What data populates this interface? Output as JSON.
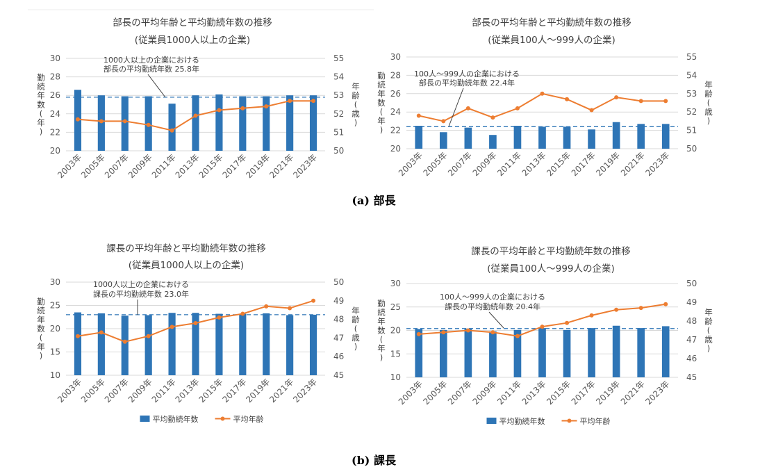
{
  "colors": {
    "bar": "#2E75B6",
    "line": "#ED7D31",
    "ref": "#2E75B6",
    "grid": "#D9D9D9",
    "text": "#404040",
    "tick": "#595959"
  },
  "captions": {
    "a": "(a) 部長",
    "b": "(b) 課長"
  },
  "legend": {
    "bar_label": "平均勤続年数",
    "line_label": "平均年齢"
  },
  "chart_data": [
    {
      "type": "bar+line",
      "title": "部長の平均年齢と平均勤続年数の推移",
      "subtitle": "(従業員1000人以上の企業)",
      "categories": [
        "2003年",
        "2005年",
        "2007年",
        "2009年",
        "2011年",
        "2013年",
        "2015年",
        "2017年",
        "2019年",
        "2021年",
        "2023年"
      ],
      "series": [
        {
          "name": "平均勤続年数",
          "kind": "bar",
          "axis": "left",
          "values": [
            26.6,
            26.0,
            25.9,
            25.9,
            25.1,
            26.0,
            26.1,
            25.9,
            25.9,
            26.0,
            26.0
          ]
        },
        {
          "name": "平均年齢",
          "kind": "line",
          "axis": "right",
          "values": [
            51.7,
            51.6,
            51.6,
            51.4,
            51.1,
            51.9,
            52.2,
            52.3,
            52.4,
            52.7,
            52.7
          ]
        }
      ],
      "ylabel_left": "勤続年数(年)",
      "ylabel_right": "年齢(歳)",
      "ylim_left": [
        20,
        30
      ],
      "yticks_left": [
        20,
        22,
        24,
        26,
        28,
        30
      ],
      "ylim_right": [
        50,
        55
      ],
      "yticks_right": [
        50,
        51,
        52,
        53,
        54,
        55
      ],
      "reference": {
        "value": 25.8,
        "label_line1": "1000人以上の企業における",
        "label_line2": "部長の平均勤続年数 25.8年"
      },
      "legend": false
    },
    {
      "type": "bar+line",
      "title": "部長の平均年齢と平均勤続年数の推移",
      "subtitle": "(従業員100人～999人の企業)",
      "categories": [
        "2003年",
        "2005年",
        "2007年",
        "2009年",
        "2011年",
        "2013年",
        "2015年",
        "2017年",
        "2019年",
        "2021年",
        "2023年"
      ],
      "series": [
        {
          "name": "平均勤続年数",
          "kind": "bar",
          "axis": "left",
          "values": [
            22.5,
            21.8,
            22.3,
            21.5,
            22.5,
            22.4,
            22.4,
            22.1,
            22.9,
            22.7,
            22.7
          ]
        },
        {
          "name": "平均年齢",
          "kind": "line",
          "axis": "right",
          "values": [
            51.8,
            51.5,
            52.2,
            51.7,
            52.2,
            53.0,
            52.7,
            52.1,
            52.8,
            52.6,
            52.6
          ]
        }
      ],
      "ylabel_left": "勤続年数(年)",
      "ylabel_right": "年齢(歳)",
      "ylim_left": [
        20,
        30
      ],
      "yticks_left": [
        20,
        22,
        24,
        26,
        28,
        30
      ],
      "ylim_right": [
        50,
        55
      ],
      "yticks_right": [
        50,
        51,
        52,
        53,
        54,
        55
      ],
      "reference": {
        "value": 22.4,
        "label_line1": "100人～999人の企業における",
        "label_line2": "部長の平均勤続年数 22.4年"
      },
      "legend": false
    },
    {
      "type": "bar+line",
      "title": "課長の平均年齢と平均勤続年数の推移",
      "subtitle": "(従業員1000人以上の企業)",
      "categories": [
        "2003年",
        "2005年",
        "2007年",
        "2009年",
        "2011年",
        "2013年",
        "2015年",
        "2017年",
        "2019年",
        "2021年",
        "2023年"
      ],
      "series": [
        {
          "name": "平均勤続年数",
          "kind": "bar",
          "axis": "left",
          "values": [
            23.5,
            23.3,
            22.8,
            22.9,
            23.4,
            23.4,
            23.2,
            23.2,
            23.3,
            22.9,
            23.0
          ]
        },
        {
          "name": "平均年齢",
          "kind": "line",
          "axis": "right",
          "values": [
            47.1,
            47.3,
            46.8,
            47.1,
            47.6,
            47.8,
            48.1,
            48.3,
            48.7,
            48.6,
            49.0
          ]
        }
      ],
      "ylabel_left": "勤続年数(年)",
      "ylabel_right": "年齢(歳)",
      "ylim_left": [
        10,
        30
      ],
      "yticks_left": [
        10,
        15,
        20,
        25,
        30
      ],
      "ylim_right": [
        45,
        50
      ],
      "yticks_right": [
        45,
        46,
        47,
        48,
        49,
        50
      ],
      "reference": {
        "value": 23.0,
        "label_line1": "1000人以上の企業における",
        "label_line2": "課長の平均勤続年数 23.0年"
      },
      "legend": true
    },
    {
      "type": "bar+line",
      "title": "課長の平均年齢と平均勤続年数の推移",
      "subtitle": "(従業員100人～999人の企業)",
      "categories": [
        "2003年",
        "2005年",
        "2007年",
        "2009年",
        "2011年",
        "2013年",
        "2015年",
        "2017年",
        "2019年",
        "2021年",
        "2023年"
      ],
      "series": [
        {
          "name": "平均勤続年数",
          "kind": "bar",
          "axis": "left",
          "values": [
            20.3,
            20.1,
            20.4,
            19.8,
            20.1,
            20.5,
            20.1,
            20.5,
            21.0,
            20.5,
            20.9
          ]
        },
        {
          "name": "平均年齢",
          "kind": "line",
          "axis": "right",
          "values": [
            47.3,
            47.4,
            47.5,
            47.4,
            47.2,
            47.7,
            47.9,
            48.3,
            48.6,
            48.7,
            48.9
          ]
        }
      ],
      "ylabel_left": "勤続年数(年)",
      "ylabel_right": "年齢(歳)",
      "ylim_left": [
        10,
        30
      ],
      "yticks_left": [
        10,
        15,
        20,
        25,
        30
      ],
      "ylim_right": [
        45,
        50
      ],
      "yticks_right": [
        45,
        46,
        47,
        48,
        49,
        50
      ],
      "reference": {
        "value": 20.4,
        "label_line1": "100人～999人の企業における",
        "label_line2": "課長の平均勤続年数 20.4年"
      },
      "legend": true
    }
  ]
}
